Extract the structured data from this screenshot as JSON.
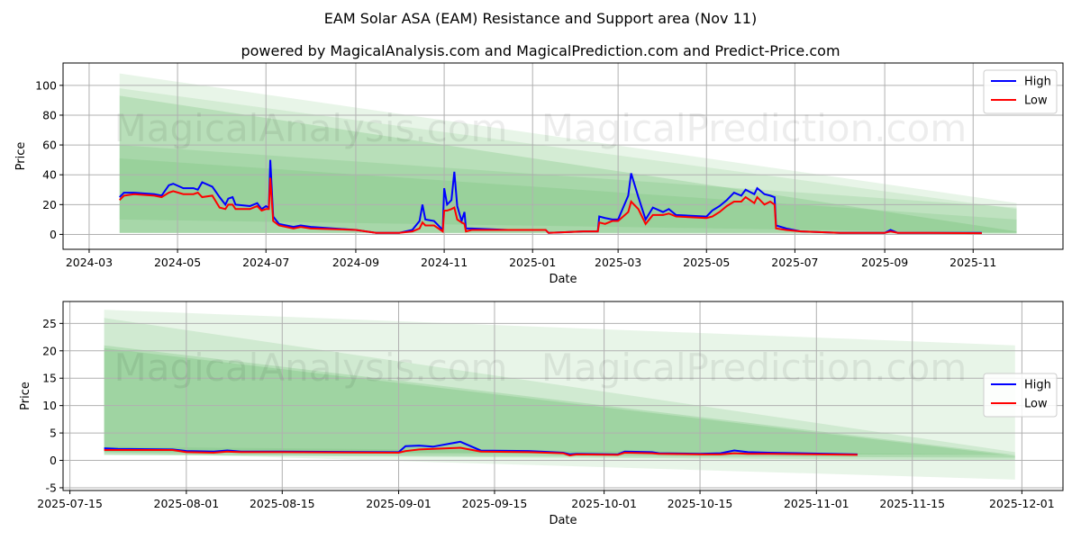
{
  "title": "EAM Solar ASA (EAM) Resistance and Support area (Nov 11)",
  "subtitle": "powered by MagicalAnalysis.com and MagicalPrediction.com and Predict-Price.com",
  "watermarks": [
    "MagicalAnalysis.com",
    "MagicalPrediction.com"
  ],
  "colors": {
    "high": "#0000ff",
    "low": "#ff0000",
    "band": "#4caf50"
  },
  "chart_data": [
    {
      "type": "line",
      "xlabel": "Date",
      "ylabel": "Price",
      "ylim": [
        -10,
        115
      ],
      "xlim": [
        "2024-02-12",
        "2026-01-02"
      ],
      "yticks": [
        0,
        20,
        40,
        60,
        80,
        100
      ],
      "xticks": [
        "2024-03",
        "2024-05",
        "2024-07",
        "2024-09",
        "2024-11",
        "2025-01",
        "2025-03",
        "2025-05",
        "2025-07",
        "2025-09",
        "2025-11"
      ],
      "legend": {
        "placement": "top-right",
        "entries": [
          "High",
          "Low"
        ]
      },
      "band_range": [
        "2024-03-22",
        "2025-12-01"
      ],
      "bands": [
        {
          "top": [
            108,
            21
          ],
          "bottom": [
            1,
            1
          ],
          "opacity": 0.13
        },
        {
          "top": [
            98,
            17
          ],
          "bottom": [
            1,
            1
          ],
          "opacity": 0.13
        },
        {
          "top": [
            93,
            2
          ],
          "bottom": [
            1,
            0
          ],
          "opacity": 0.2
        },
        {
          "top": [
            60,
            18
          ],
          "bottom": [
            1,
            1
          ],
          "opacity": 0.15
        },
        {
          "top": [
            51,
            10
          ],
          "bottom": [
            10,
            1
          ],
          "opacity": 0.15
        }
      ],
      "series": [
        [
          "2024-03-22",
          25,
          23
        ],
        [
          "2024-03-25",
          28,
          26
        ],
        [
          "2024-04-01",
          28,
          27
        ],
        [
          "2024-04-15",
          27,
          26
        ],
        [
          "2024-04-20",
          26,
          25
        ],
        [
          "2024-04-25",
          33,
          28
        ],
        [
          "2024-04-28",
          34,
          29
        ],
        [
          "2024-05-05",
          31,
          27
        ],
        [
          "2024-05-12",
          31,
          27
        ],
        [
          "2024-05-15",
          30,
          28
        ],
        [
          "2024-05-18",
          35,
          25
        ],
        [
          "2024-05-25",
          32,
          26
        ],
        [
          "2024-05-30",
          25,
          18
        ],
        [
          "2024-06-03",
          20,
          17
        ],
        [
          "2024-06-05",
          24,
          20
        ],
        [
          "2024-06-08",
          25,
          20
        ],
        [
          "2024-06-10",
          20,
          17
        ],
        [
          "2024-06-20",
          19,
          17
        ],
        [
          "2024-06-25",
          21,
          19
        ],
        [
          "2024-06-28",
          17,
          16
        ],
        [
          "2024-07-01",
          19,
          17
        ],
        [
          "2024-07-03",
          18,
          17
        ],
        [
          "2024-07-04",
          50,
          38
        ],
        [
          "2024-07-06",
          12,
          9
        ],
        [
          "2024-07-10",
          7,
          6
        ],
        [
          "2024-07-20",
          5,
          4
        ],
        [
          "2024-07-25",
          6,
          5
        ],
        [
          "2024-08-01",
          5,
          4
        ],
        [
          "2024-09-01",
          3,
          3
        ],
        [
          "2024-09-15",
          1,
          1
        ],
        [
          "2024-10-01",
          1,
          1
        ],
        [
          "2024-10-10",
          3,
          2
        ],
        [
          "2024-10-15",
          9,
          4
        ],
        [
          "2024-10-17",
          20,
          8
        ],
        [
          "2024-10-19",
          10,
          6
        ],
        [
          "2024-10-25",
          9,
          6
        ],
        [
          "2024-10-31",
          3,
          2
        ],
        [
          "2024-11-01",
          31,
          16
        ],
        [
          "2024-11-03",
          20,
          16
        ],
        [
          "2024-11-06",
          23,
          17
        ],
        [
          "2024-11-08",
          42,
          18
        ],
        [
          "2024-11-10",
          19,
          10
        ],
        [
          "2024-11-13",
          9,
          8
        ],
        [
          "2024-11-15",
          15,
          7
        ],
        [
          "2024-11-16",
          4,
          2
        ],
        [
          "2024-11-20",
          4,
          3
        ],
        [
          "2024-12-15",
          3,
          3
        ],
        [
          "2025-01-10",
          3,
          3
        ],
        [
          "2025-01-12",
          1,
          1
        ],
        [
          "2025-02-05",
          2,
          2
        ],
        [
          "2025-02-15",
          2,
          2
        ],
        [
          "2025-02-16",
          12,
          8
        ],
        [
          "2025-02-20",
          11,
          7
        ],
        [
          "2025-02-25",
          10,
          9
        ],
        [
          "2025-03-01",
          10,
          9
        ],
        [
          "2025-03-08",
          26,
          15
        ],
        [
          "2025-03-10",
          41,
          22
        ],
        [
          "2025-03-15",
          25,
          17
        ],
        [
          "2025-03-20",
          10,
          7
        ],
        [
          "2025-03-25",
          18,
          13
        ],
        [
          "2025-04-01",
          15,
          13
        ],
        [
          "2025-04-05",
          17,
          14
        ],
        [
          "2025-04-10",
          13,
          12
        ],
        [
          "2025-05-01",
          12,
          11
        ],
        [
          "2025-05-05",
          16,
          12
        ],
        [
          "2025-05-10",
          19,
          15
        ],
        [
          "2025-05-15",
          23,
          19
        ],
        [
          "2025-05-20",
          28,
          22
        ],
        [
          "2025-05-25",
          26,
          22
        ],
        [
          "2025-05-28",
          30,
          25
        ],
        [
          "2025-06-03",
          27,
          21
        ],
        [
          "2025-06-05",
          31,
          25
        ],
        [
          "2025-06-10",
          27,
          20
        ],
        [
          "2025-06-14",
          26,
          22
        ],
        [
          "2025-06-17",
          25,
          20
        ],
        [
          "2025-06-18",
          6,
          4
        ],
        [
          "2025-06-25",
          4,
          3
        ],
        [
          "2025-07-05",
          2,
          2
        ],
        [
          "2025-08-01",
          1,
          1
        ],
        [
          "2025-09-01",
          1,
          1
        ],
        [
          "2025-09-05",
          3,
          2
        ],
        [
          "2025-09-10",
          1,
          1
        ],
        [
          "2025-10-01",
          1,
          1
        ],
        [
          "2025-11-07",
          1,
          0.8
        ]
      ]
    },
    {
      "type": "line",
      "xlabel": "Date",
      "ylabel": "Price",
      "ylim": [
        -5.5,
        29
      ],
      "xlim": [
        "2025-07-14",
        "2025-12-07"
      ],
      "yticks": [
        -5,
        0,
        5,
        10,
        15,
        20,
        25
      ],
      "xticks": [
        "2025-07-15",
        "2025-08-01",
        "2025-08-15",
        "2025-09-01",
        "2025-09-15",
        "2025-10-01",
        "2025-10-15",
        "2025-11-01",
        "2025-11-15",
        "2025-12-01"
      ],
      "legend": {
        "placement": "center-right",
        "entries": [
          "High",
          "Low"
        ]
      },
      "band_range": [
        "2025-07-20",
        "2025-11-30"
      ],
      "bands": [
        {
          "top": [
            27.5,
            21
          ],
          "bottom": [
            1.5,
            1
          ],
          "opacity": 0.13
        },
        {
          "top": [
            26,
            1.5
          ],
          "bottom": [
            1.5,
            1
          ],
          "opacity": 0.15
        },
        {
          "top": [
            21,
            1
          ],
          "bottom": [
            1,
            0.5
          ],
          "opacity": 0.2
        },
        {
          "top": [
            20.5,
            0.8
          ],
          "bottom": [
            1,
            0
          ],
          "opacity": 0.2
        },
        {
          "top": [
            2.5,
            1
          ],
          "bottom": [
            1.5,
            -3.5
          ],
          "opacity": 0.13
        }
      ],
      "series": [
        [
          "2025-07-20",
          2.2,
          1.9
        ],
        [
          "2025-07-22",
          2.1,
          1.9
        ],
        [
          "2025-07-30",
          2.0,
          1.9
        ],
        [
          "2025-08-01",
          1.7,
          1.5
        ],
        [
          "2025-08-05",
          1.6,
          1.4
        ],
        [
          "2025-08-07",
          1.8,
          1.6
        ],
        [
          "2025-08-09",
          1.6,
          1.5
        ],
        [
          "2025-08-15",
          1.6,
          1.5
        ],
        [
          "2025-09-01",
          1.5,
          1.4
        ],
        [
          "2025-09-02",
          2.6,
          1.7
        ],
        [
          "2025-09-04",
          2.7,
          2.0
        ],
        [
          "2025-09-06",
          2.5,
          2.1
        ],
        [
          "2025-09-10",
          3.4,
          2.3
        ],
        [
          "2025-09-13",
          1.8,
          1.6
        ],
        [
          "2025-09-20",
          1.7,
          1.5
        ],
        [
          "2025-09-25",
          1.4,
          1.3
        ],
        [
          "2025-09-26",
          1.1,
          0.9
        ],
        [
          "2025-09-27",
          1.2,
          1.1
        ],
        [
          "2025-10-03",
          1.1,
          1.0
        ],
        [
          "2025-10-04",
          1.6,
          1.4
        ],
        [
          "2025-10-08",
          1.5,
          1.3
        ],
        [
          "2025-10-09",
          1.3,
          1.2
        ],
        [
          "2025-10-15",
          1.2,
          1.1
        ],
        [
          "2025-10-18",
          1.3,
          1.1
        ],
        [
          "2025-10-20",
          1.8,
          1.3
        ],
        [
          "2025-10-22",
          1.5,
          1.2
        ],
        [
          "2025-10-25",
          1.4,
          1.2
        ],
        [
          "2025-11-07",
          1.1,
          1.0
        ]
      ]
    }
  ]
}
